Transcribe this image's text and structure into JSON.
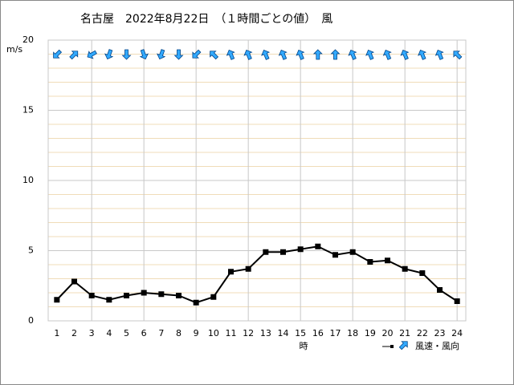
{
  "chart_data": {
    "type": "line",
    "title": "名古屋　2022年8月22日　（１時間ごとの値）　風",
    "y_label": "m/s",
    "x_label": "時",
    "legend_label": "風速・風向",
    "x": [
      1,
      2,
      3,
      4,
      5,
      6,
      7,
      8,
      9,
      10,
      11,
      12,
      13,
      14,
      15,
      16,
      17,
      18,
      19,
      20,
      21,
      22,
      23,
      24
    ],
    "xlim": [
      0.5,
      24.5
    ],
    "xticks": [
      1,
      2,
      3,
      4,
      5,
      6,
      7,
      8,
      9,
      10,
      11,
      12,
      13,
      14,
      15,
      16,
      17,
      18,
      19,
      20,
      21,
      22,
      23,
      24
    ],
    "series": [
      {
        "name": "風速",
        "color": "#000000",
        "values": [
          1.5,
          2.8,
          1.8,
          1.5,
          1.8,
          2.0,
          1.9,
          1.8,
          1.3,
          1.7,
          3.5,
          3.7,
          4.9,
          4.9,
          5.1,
          5.3,
          4.7,
          4.9,
          4.2,
          4.3,
          3.7,
          3.4,
          2.2,
          1.4
        ]
      }
    ],
    "wind_direction_deg": [
      225,
      45,
      240,
      200,
      180,
      160,
      200,
      180,
      225,
      315,
      337.5,
      337.5,
      337.5,
      337.5,
      337.5,
      0,
      0,
      337.5,
      337.5,
      337.5,
      337.5,
      337.5,
      337.5,
      315
    ],
    "arrow_color": "#33aaff",
    "ylim": [
      0,
      20
    ],
    "yticks": [
      0,
      5,
      10,
      15,
      20
    ],
    "y_minor_step": 1,
    "x_grid_step": 3,
    "grid": true
  }
}
